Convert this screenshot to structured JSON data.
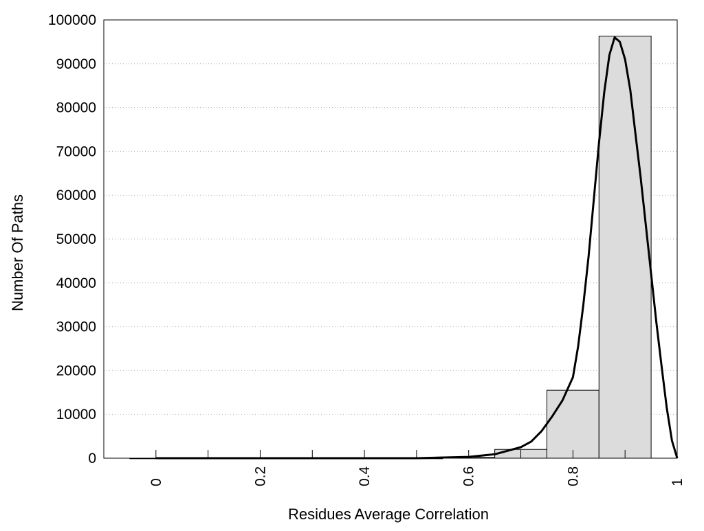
{
  "chart_data": {
    "type": "bar",
    "title": "",
    "xlabel": "Residues Average Correlation",
    "ylabel": "Number Of Paths",
    "xlim": [
      -0.1,
      1.0
    ],
    "ylim": [
      0,
      100000
    ],
    "x_ticks": [
      {
        "value": 0,
        "label": "0"
      },
      {
        "value": 0.2,
        "label": "0.2"
      },
      {
        "value": 0.4,
        "label": "0.4"
      },
      {
        "value": 0.6,
        "label": "0.6"
      },
      {
        "value": 0.8,
        "label": "0.8"
      },
      {
        "value": 1.0,
        "label": "1"
      }
    ],
    "x_minor_ticks": [
      0.1,
      0.3,
      0.5,
      0.7,
      0.9
    ],
    "y_ticks": [
      0,
      10000,
      20000,
      30000,
      40000,
      50000,
      60000,
      70000,
      80000,
      90000,
      100000
    ],
    "grid": "y-dotted",
    "legend": "none",
    "bins": [
      {
        "x0": -0.05,
        "x1": 0.05,
        "value": 0
      },
      {
        "x0": 0.05,
        "x1": 0.15,
        "value": 0
      },
      {
        "x0": 0.15,
        "x1": 0.25,
        "value": 0
      },
      {
        "x0": 0.25,
        "x1": 0.35,
        "value": 0
      },
      {
        "x0": 0.35,
        "x1": 0.45,
        "value": 0
      },
      {
        "x0": 0.45,
        "x1": 0.55,
        "value": 0
      },
      {
        "x0": 0.55,
        "x1": 0.65,
        "value": 200
      },
      {
        "x0": 0.65,
        "x1": 0.75,
        "value": 2000
      },
      {
        "x0": 0.75,
        "x1": 0.85,
        "value": 15500
      },
      {
        "x0": 0.85,
        "x1": 0.95,
        "value": 96300
      }
    ],
    "fit_curve": {
      "x": [
        0.0,
        0.5,
        0.6,
        0.65,
        0.7,
        0.72,
        0.74,
        0.76,
        0.78,
        0.8,
        0.81,
        0.82,
        0.83,
        0.84,
        0.85,
        0.86,
        0.87,
        0.88,
        0.89,
        0.9,
        0.91,
        0.92,
        0.93,
        0.94,
        0.95,
        0.96,
        0.97,
        0.98,
        0.99,
        1.0
      ],
      "y": [
        0,
        0,
        300,
        900,
        2500,
        3800,
        6200,
        9500,
        13200,
        18500,
        25500,
        35000,
        46000,
        59000,
        72000,
        83500,
        92000,
        96000,
        95000,
        91000,
        84000,
        74000,
        64000,
        53000,
        42000,
        31000,
        21000,
        11500,
        4000,
        0
      ]
    },
    "colors": {
      "bar_fill": "#dcdcdc",
      "bar_stroke": "#000000",
      "curve": "#000000",
      "grid": "#b0b0b0"
    }
  }
}
